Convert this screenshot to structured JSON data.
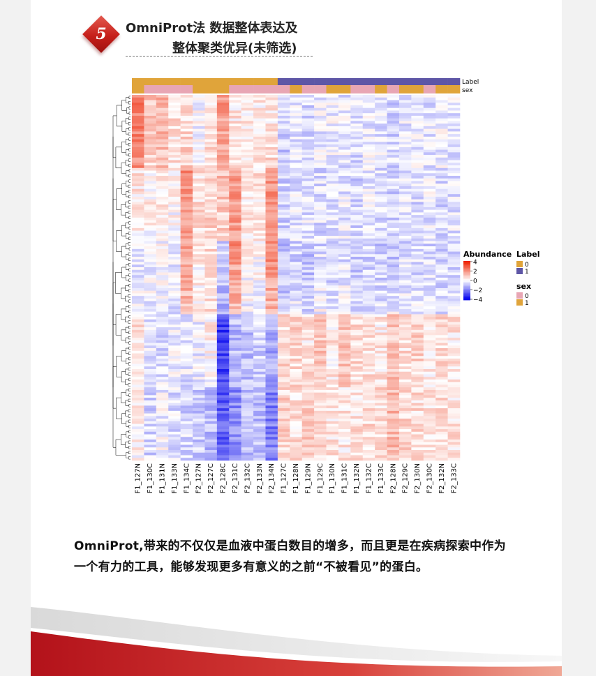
{
  "section": {
    "number": "5",
    "title_line1": "OmniProt法 数据整体表达及",
    "title_line2": "整体聚类优异(未筛选)"
  },
  "caption": {
    "line1": "OmniProt,带来的不仅仅是血液中蛋白数目的增多，而且更是在疾病探索中作为",
    "line2": "一个有力的工具，能够发现更多有意义的之前“不被看见”的蛋白。"
  },
  "chart_data": {
    "type": "heatmap",
    "columns": [
      "F1_127N",
      "F1_130C",
      "F1_131N",
      "F1_133N",
      "F1_134C",
      "F2_127N",
      "F2_127C",
      "F2_128C",
      "F2_131C",
      "F2_132C",
      "F2_133N",
      "F2_134N",
      "F1_127C",
      "F1_128N",
      "F1_129N",
      "F1_129C",
      "F1_130N",
      "F1_131C",
      "F1_132N",
      "F1_132C",
      "F1_133C",
      "F2_128N",
      "F2_129C",
      "F2_130N",
      "F2_130C",
      "F2_132N",
      "F2_133C"
    ],
    "annotations": {
      "Label": [
        0,
        0,
        0,
        0,
        0,
        0,
        0,
        0,
        0,
        0,
        0,
        0,
        1,
        1,
        1,
        1,
        1,
        1,
        1,
        1,
        1,
        1,
        1,
        1,
        1,
        1,
        1
      ],
      "sex": [
        1,
        0,
        0,
        0,
        0,
        1,
        1,
        1,
        0,
        0,
        0,
        0,
        0,
        1,
        0,
        0,
        1,
        1,
        0,
        0,
        1,
        0,
        1,
        1,
        0,
        1,
        1
      ]
    },
    "annotation_colors": {
      "Label": {
        "0": "#e0a43a",
        "1": "#5e56a6"
      },
      "sex": {
        "0": "#e8a6b4",
        "1": "#e0a43a"
      }
    },
    "legend": {
      "abundance_title": "Abundance",
      "abundance_ticks": [
        "4",
        "2",
        "0",
        "−2",
        "−4"
      ],
      "abundance_range": [
        -4,
        4
      ],
      "label_title": "Label",
      "label_levels": [
        "0",
        "1"
      ],
      "sex_title": "sex",
      "sex_levels": [
        "0",
        "1"
      ],
      "placement": "right"
    },
    "annotation_row_names": [
      "Label",
      "sex"
    ],
    "color_scale": {
      "low": "#0000ee",
      "mid": "#ffffff",
      "high": "#ee2200"
    },
    "column_profiles": [
      [
        2.5,
        0.5,
        -0.5,
        0.6,
        0.2
      ],
      [
        1.0,
        0.3,
        -0.2,
        -0.4,
        -0.6
      ],
      [
        1.4,
        0.4,
        0.0,
        -0.5,
        -0.2
      ],
      [
        0.6,
        0.2,
        -0.4,
        -0.2,
        -0.5
      ],
      [
        0.4,
        2.0,
        1.8,
        -0.4,
        -0.6
      ],
      [
        -0.2,
        0.6,
        0.3,
        -0.2,
        -0.8
      ],
      [
        0.5,
        0.8,
        0.6,
        0.3,
        -1.0
      ],
      [
        1.8,
        1.2,
        -0.6,
        -3.0,
        -2.6
      ],
      [
        0.3,
        1.8,
        2.0,
        -1.0,
        -1.8
      ],
      [
        0.3,
        0.4,
        0.2,
        -0.9,
        -1.1
      ],
      [
        0.4,
        0.5,
        0.1,
        -0.6,
        -1.0
      ],
      [
        0.2,
        2.0,
        2.2,
        -1.2,
        -2.0
      ],
      [
        -0.8,
        -0.6,
        -1.2,
        0.6,
        0.8
      ],
      [
        -0.4,
        -0.4,
        -0.8,
        0.7,
        0.6
      ],
      [
        -0.6,
        -0.3,
        -1.0,
        0.4,
        0.9
      ],
      [
        -0.3,
        -0.5,
        -0.6,
        1.0,
        0.7
      ],
      [
        -0.2,
        -0.4,
        -0.8,
        0.4,
        0.5
      ],
      [
        -0.4,
        -0.3,
        -0.6,
        1.1,
        0.4
      ],
      [
        -0.5,
        -0.6,
        -0.9,
        0.7,
        0.5
      ],
      [
        -0.3,
        -0.2,
        -0.7,
        0.5,
        0.6
      ],
      [
        -0.4,
        -0.5,
        -0.8,
        0.4,
        0.6
      ],
      [
        -0.6,
        -0.6,
        -0.9,
        1.0,
        1.2
      ],
      [
        -0.3,
        -0.4,
        -0.6,
        0.6,
        0.7
      ],
      [
        -0.2,
        -0.5,
        -0.7,
        0.8,
        0.6
      ],
      [
        -0.4,
        -0.3,
        -0.6,
        0.4,
        0.5
      ],
      [
        -0.2,
        -0.5,
        -0.8,
        0.7,
        0.6
      ],
      [
        -0.3,
        -0.4,
        -0.6,
        0.4,
        0.5
      ]
    ]
  }
}
